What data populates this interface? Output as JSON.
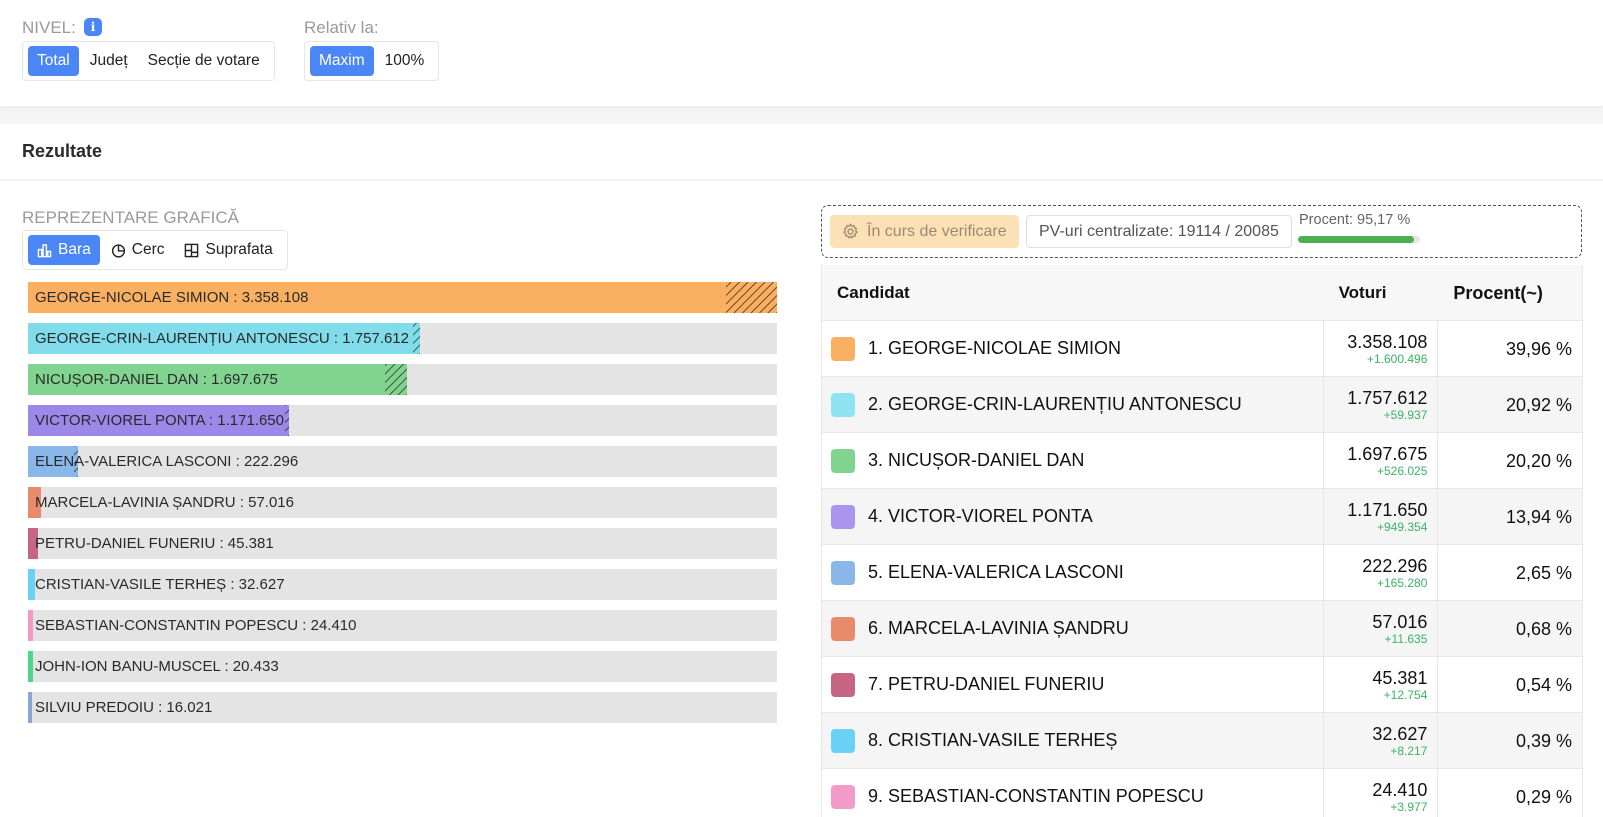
{
  "filters": {
    "nivel_label": "NIVEL:",
    "info_icon": "i",
    "nivel_options": [
      "Total",
      "Județ",
      "Secție de votare"
    ],
    "relativ_label": "Relativ la:",
    "relativ_options": [
      "Maxim",
      "100%"
    ]
  },
  "section": {
    "title": "Rezultate"
  },
  "graph": {
    "label": "REPREZENTARE GRAFICĂ",
    "type_options": [
      {
        "label": "Bara",
        "icon": "bar-chart-icon"
      },
      {
        "label": "Cerc",
        "icon": "pie-chart-icon"
      },
      {
        "label": "Suprafata",
        "icon": "treemap-icon"
      }
    ]
  },
  "status": {
    "verification": "În curs de verificare",
    "pv_text": "PV-uri centralizate: 19114 / 20085",
    "percent_text": "Procent: 95,17 %",
    "percent_value": 95.17,
    "progress_color": "#4caf50"
  },
  "table": {
    "headers": {
      "candidate": "Candidat",
      "votes": "Voturi",
      "percent": "Procent(~)"
    }
  },
  "chart_data": {
    "type": "bar",
    "relative_to": "Maxim",
    "max": 3358108,
    "bars": [
      {
        "label": "GEORGE-NICOLAE SIMION : 3.358.108",
        "value": 3358108,
        "hatched": 229000,
        "color": "#fbb061"
      },
      {
        "label": "GEORGE-CRIN-LAURENȚIU ANTONESCU : 1.757.612",
        "value": 1757612,
        "hatched": 30000,
        "color": "#80dcea"
      },
      {
        "label": "NICUȘOR-DANIEL DAN : 1.697.675",
        "value": 1697675,
        "hatched": 97000,
        "color": "#80d48f"
      },
      {
        "label": "VICTOR-VIOREL PONTA : 1.171.650",
        "value": 1171650,
        "hatched": 9000,
        "color": "#9b88e8"
      },
      {
        "label": "ELENA-VALERICA LASCONI : 222.296",
        "value": 222296,
        "hatched": 4000,
        "color": "#8ab7ea"
      },
      {
        "label": "MARCELA-LAVINIA ȘANDRU : 57.016",
        "value": 57016,
        "hatched": 0,
        "color": "#e98a6b"
      },
      {
        "label": "PETRU-DANIEL FUNERIU : 45.381",
        "value": 45381,
        "hatched": 0,
        "color": "#c76585"
      },
      {
        "label": "CRISTIAN-VASILE TERHEȘ : 32.627",
        "value": 32627,
        "hatched": 0,
        "color": "#6ad2f6"
      },
      {
        "label": "SEBASTIAN-CONSTANTIN POPESCU : 24.410",
        "value": 24410,
        "hatched": 0,
        "color": "#f29ac8"
      },
      {
        "label": "JOHN-ION BANU-MUSCEL : 20.433",
        "value": 20433,
        "hatched": 0,
        "color": "#4cd88a"
      },
      {
        "label": "SILVIU PREDOIU : 16.021",
        "value": 16021,
        "hatched": 0,
        "color": "#8aa6d6"
      }
    ]
  },
  "candidates": [
    {
      "name": "1. GEORGE-NICOLAE SIMION",
      "votes": "3.358.108",
      "diff": "+1.600.496",
      "percent": "39,96 %",
      "color": "#fbb061"
    },
    {
      "name": "2. GEORGE-CRIN-LAURENȚIU ANTONESCU",
      "votes": "1.757.612",
      "diff": "+59.937",
      "percent": "20,92 %",
      "color": "#8fe4ef"
    },
    {
      "name": "3. NICUȘOR-DANIEL DAN",
      "votes": "1.697.675",
      "diff": "+526.025",
      "percent": "20,20 %",
      "color": "#80d48f"
    },
    {
      "name": "4. VICTOR-VIOREL PONTA",
      "votes": "1.171.650",
      "diff": "+949.354",
      "percent": "13,94 %",
      "color": "#a995ee"
    },
    {
      "name": "5. ELENA-VALERICA LASCONI",
      "votes": "222.296",
      "diff": "+165.280",
      "percent": "2,65 %",
      "color": "#8ab7ea"
    },
    {
      "name": "6. MARCELA-LAVINIA ȘANDRU",
      "votes": "57.016",
      "diff": "+11.635",
      "percent": "0,68 %",
      "color": "#e98a6b"
    },
    {
      "name": "7. PETRU-DANIEL FUNERIU",
      "votes": "45.381",
      "diff": "+12.754",
      "percent": "0,54 %",
      "color": "#c76585"
    },
    {
      "name": "8. CRISTIAN-VASILE TERHEȘ",
      "votes": "32.627",
      "diff": "+8.217",
      "percent": "0,39 %",
      "color": "#6ad2f6"
    },
    {
      "name": "9. SEBASTIAN-CONSTANTIN POPESCU",
      "votes": "24.410",
      "diff": "+3.977",
      "percent": "0,29 %",
      "color": "#f29ac8"
    }
  ]
}
